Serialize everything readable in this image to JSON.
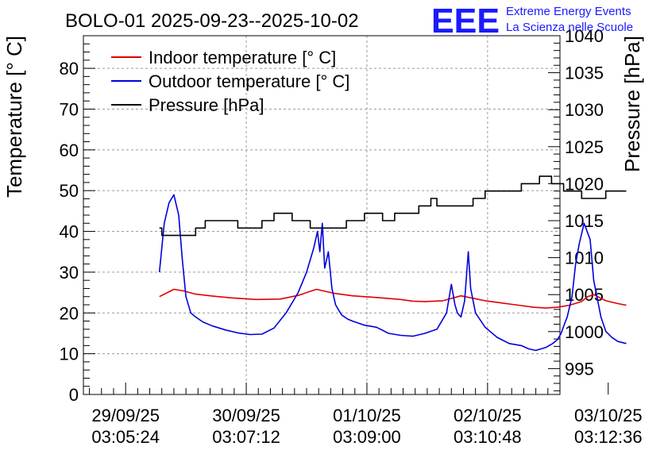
{
  "chart_data": {
    "type": "line",
    "title": "BOLO-01 2025-09-23--2025-10-02",
    "logo": {
      "text": "EEE",
      "line1": "Extreme Energy Events",
      "line2": "La Scienza nelle Scuole"
    },
    "ylabel_left": "Temperature [° C]",
    "ylabel_right": "Pressure [hPa]",
    "ylim_left": [
      0,
      88
    ],
    "ylim_right": [
      991.5,
      1040
    ],
    "left_ticks": [
      0,
      10,
      20,
      30,
      40,
      50,
      60,
      70,
      80
    ],
    "right_ticks": [
      995,
      1000,
      1005,
      1010,
      1015,
      1020,
      1025,
      1030,
      1035,
      1040
    ],
    "x_ticks": [
      {
        "date": "29/09/25",
        "time": "03:05:24"
      },
      {
        "date": "30/09/25",
        "time": "03:07:12"
      },
      {
        "date": "01/10/25",
        "time": "03:09:00"
      },
      {
        "date": "02/10/25",
        "time": "03:10:48"
      },
      {
        "date": "03/10/25",
        "time": "03:12:36"
      }
    ],
    "grid": true,
    "legend_position": "top-left",
    "colors": {
      "indoor": "#e00000",
      "outdoor": "#0000dd",
      "pressure": "#000000",
      "logo": "#1a1aff",
      "grid": "#9a9a9a"
    },
    "series": [
      {
        "name": "Indoor temperature [° C]",
        "key": "indoor",
        "axis": "left",
        "x": [
          0.0,
          0.08,
          0.12,
          0.2,
          0.3,
          0.45,
          0.6,
          0.8,
          1.0,
          1.15,
          1.3,
          1.45,
          1.6,
          1.8,
          2.0,
          2.1,
          2.2,
          2.35,
          2.5,
          2.6,
          2.7,
          2.8,
          2.9,
          3.0,
          3.1,
          3.2,
          3.3,
          3.4,
          3.5,
          3.55,
          3.6,
          3.7,
          3.8,
          3.87
        ],
        "values": [
          24.0,
          25.2,
          25.8,
          25.4,
          24.6,
          24.1,
          23.7,
          23.3,
          23.4,
          24.3,
          25.8,
          24.8,
          24.2,
          23.8,
          23.3,
          22.9,
          22.8,
          23.0,
          24.2,
          23.6,
          23.0,
          22.6,
          22.2,
          21.8,
          21.4,
          21.2,
          21.4,
          21.9,
          22.8,
          24.0,
          24.5,
          23.0,
          22.3,
          21.9
        ]
      },
      {
        "name": "Outdoor temperature [° C]",
        "key": "outdoor",
        "axis": "left",
        "x": [
          0.0,
          0.04,
          0.08,
          0.12,
          0.16,
          0.19,
          0.22,
          0.26,
          0.3,
          0.36,
          0.44,
          0.55,
          0.65,
          0.75,
          0.85,
          0.95,
          1.05,
          1.15,
          1.22,
          1.28,
          1.31,
          1.33,
          1.35,
          1.37,
          1.4,
          1.43,
          1.46,
          1.49,
          1.51,
          1.56,
          1.6,
          1.7,
          1.8,
          1.9,
          2.0,
          2.1,
          2.2,
          2.3,
          2.38,
          2.42,
          2.45,
          2.47,
          2.5,
          2.53,
          2.56,
          2.58,
          2.62,
          2.7,
          2.8,
          2.9,
          3.0,
          3.06,
          3.12,
          3.2,
          3.26,
          3.3,
          3.33,
          3.36,
          3.38,
          3.42,
          3.45,
          3.48,
          3.52,
          3.57,
          3.6,
          3.66,
          3.7,
          3.75,
          3.8,
          3.87
        ],
        "values": [
          30.0,
          42.0,
          47.0,
          49.0,
          44.0,
          33.0,
          24.0,
          20.0,
          19.0,
          17.8,
          16.8,
          15.8,
          15.1,
          14.7,
          14.8,
          16.3,
          20.0,
          25.0,
          30.0,
          36.0,
          40.0,
          35.0,
          42.0,
          31.0,
          35.0,
          26.0,
          22.0,
          20.5,
          19.5,
          18.5,
          18.0,
          17.0,
          16.5,
          15.0,
          14.5,
          14.3,
          15.0,
          16.0,
          20.0,
          27.0,
          22.0,
          20.0,
          19.0,
          23.0,
          35.0,
          26.0,
          20.0,
          16.5,
          14.0,
          12.5,
          12.0,
          11.2,
          10.8,
          11.5,
          12.5,
          13.5,
          15.0,
          17.5,
          19.0,
          24.0,
          32.0,
          37.0,
          42.0,
          38.0,
          28.0,
          19.0,
          15.5,
          14.0,
          13.0,
          12.5
        ]
      },
      {
        "name": "Pressure [hPa]",
        "key": "pressure",
        "axis": "right",
        "steps": [
          [
            0.0,
            1014.0
          ],
          [
            0.02,
            1013.0
          ],
          [
            0.3,
            1014.0
          ],
          [
            0.38,
            1015.0
          ],
          [
            0.65,
            1014.0
          ],
          [
            0.85,
            1015.0
          ],
          [
            0.95,
            1016.0
          ],
          [
            1.1,
            1015.0
          ],
          [
            1.25,
            1014.0
          ],
          [
            1.45,
            1014.0
          ],
          [
            1.55,
            1015.0
          ],
          [
            1.7,
            1016.0
          ],
          [
            1.85,
            1015.0
          ],
          [
            1.95,
            1016.0
          ],
          [
            2.05,
            1016.0
          ],
          [
            2.15,
            1017.0
          ],
          [
            2.25,
            1018.0
          ],
          [
            2.3,
            1017.0
          ],
          [
            2.6,
            1018.0
          ],
          [
            2.7,
            1019.0
          ],
          [
            2.85,
            1019.0
          ],
          [
            3.0,
            1020.0
          ],
          [
            3.1,
            1020.0
          ],
          [
            3.15,
            1021.0
          ],
          [
            3.25,
            1020.0
          ],
          [
            3.35,
            1019.0
          ],
          [
            3.5,
            1018.0
          ],
          [
            3.7,
            1019.0
          ],
          [
            3.87,
            1019.0
          ]
        ]
      }
    ]
  }
}
